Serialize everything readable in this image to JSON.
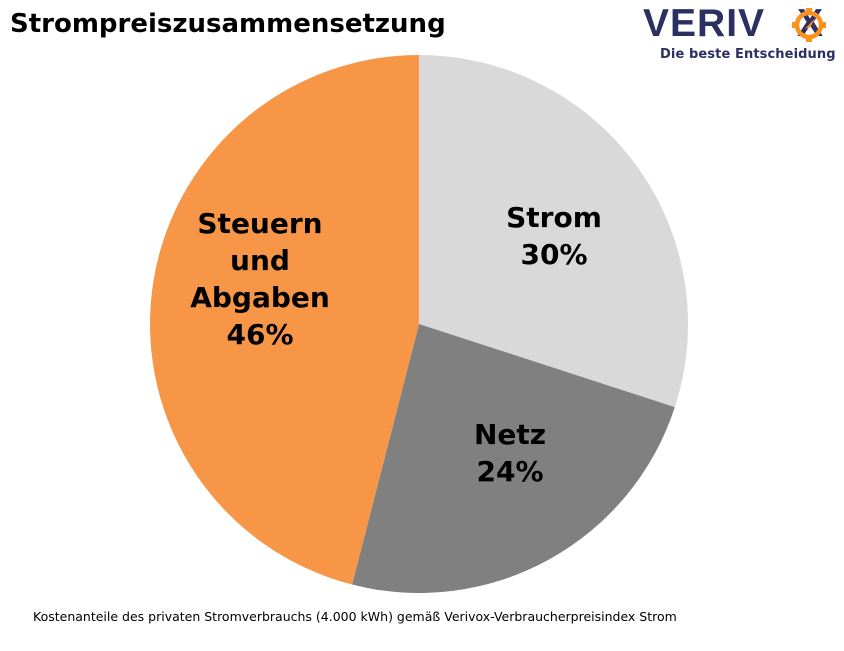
{
  "header": {
    "title": "Strompreiszusammensetzung"
  },
  "logo": {
    "brand_left": "VERIV",
    "brand_right": "X",
    "tagline": "Die beste Entscheidung",
    "icon": "compass-icon",
    "brand_color": "#2b2f61",
    "accent_color": "#f7931e"
  },
  "footnote": "Kostenanteile  des privaten Stromverbrauchs (4.000  kWh) gemäß Verivox-Verbraucherpreisindex  Strom",
  "chart_data": {
    "type": "pie",
    "title": "Strompreiszusammensetzung",
    "subtitle": "Kostenanteile des privaten Stromverbrauchs (4.000 kWh) gemäß Verivox-Verbraucherpreisindex Strom",
    "categories": [
      "Strom",
      "Netz",
      "Steuern und Abgaben"
    ],
    "values": [
      30,
      24,
      46
    ],
    "unit": "%",
    "colors": [
      "#d9d9d9",
      "#808080",
      "#f79646"
    ],
    "start_angle_deg": 0,
    "direction": "clockwise",
    "legend": "none",
    "data_labels": [
      {
        "lines": [
          "Strom",
          "30%"
        ]
      },
      {
        "lines": [
          "Netz",
          "24%"
        ]
      },
      {
        "lines": [
          "Steuern",
          "und",
          "Abgaben",
          "46%"
        ]
      }
    ]
  }
}
